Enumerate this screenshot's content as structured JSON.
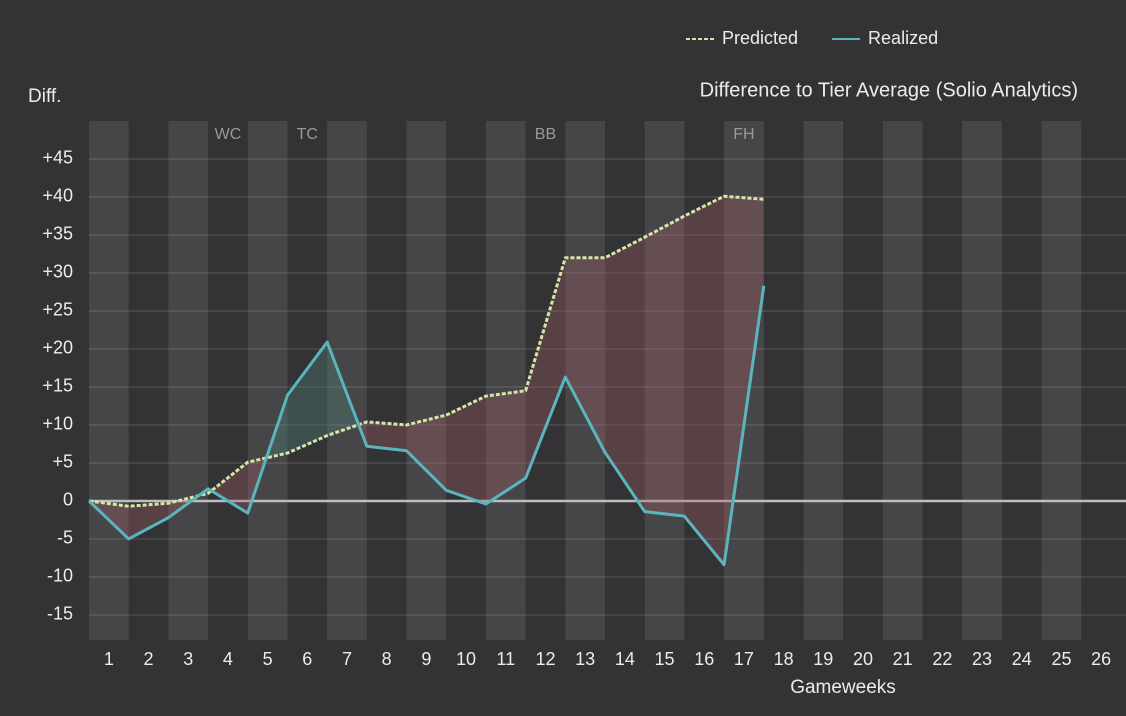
{
  "chart_data": {
    "type": "line",
    "title": "Difference to Tier Average (Solio Analytics)",
    "y_label": "Diff.",
    "x_label": "Gameweeks",
    "x": [
      0.5,
      1.5,
      2.5,
      3.5,
      4.5,
      5.5,
      6.5,
      7.5,
      8.5,
      9.5,
      10.5,
      11.5,
      12.5,
      13.5,
      14.5,
      15.5,
      16.5,
      17.5
    ],
    "series": [
      {
        "name": "Predicted",
        "color": "#d5e6a8",
        "dashed": true,
        "values": [
          0,
          -0.7,
          -0.3,
          1.0,
          5.1,
          6.3,
          8.6,
          10.4,
          10.0,
          11.3,
          13.8,
          14.5,
          32.0,
          32.0,
          34.7,
          37.5,
          40.1,
          39.7
        ]
      },
      {
        "name": "Realized",
        "color": "#5bb5bf",
        "dashed": false,
        "values": [
          0,
          -5.0,
          -2.2,
          1.6,
          -1.6,
          13.9,
          20.9,
          7.2,
          6.6,
          1.4,
          -0.4,
          3.0,
          16.3,
          6.4,
          -1.4,
          -2.0,
          -8.4,
          28.3
        ]
      }
    ],
    "chips": [
      {
        "label": "WC",
        "gameweek": 4
      },
      {
        "label": "TC",
        "gameweek": 6
      },
      {
        "label": "BB",
        "gameweek": 12
      },
      {
        "label": "FH",
        "gameweek": 17
      }
    ],
    "xlim": [
      0.5,
      26.5
    ],
    "xticks": [
      1,
      2,
      3,
      4,
      5,
      6,
      7,
      8,
      9,
      10,
      11,
      12,
      13,
      14,
      15,
      16,
      17,
      18,
      19,
      20,
      21,
      22,
      23,
      24,
      25,
      26
    ],
    "ylim": [
      -18.3,
      50
    ],
    "yticks": [
      {
        "value": -15,
        "label": "-15"
      },
      {
        "value": -10,
        "label": "-10"
      },
      -5,
      0,
      {
        "value": 5,
        "label": "+5"
      },
      {
        "value": 10,
        "label": "+10"
      },
      {
        "value": 15,
        "label": "+15"
      },
      {
        "value": 20,
        "label": "+20"
      },
      {
        "value": 25,
        "label": "+25"
      },
      {
        "value": 30,
        "label": "+30"
      },
      {
        "value": 35,
        "label": "+35"
      },
      {
        "value": 40,
        "label": "+40"
      },
      {
        "value": 45,
        "label": "+45"
      }
    ],
    "grid": true,
    "legend": "top"
  }
}
